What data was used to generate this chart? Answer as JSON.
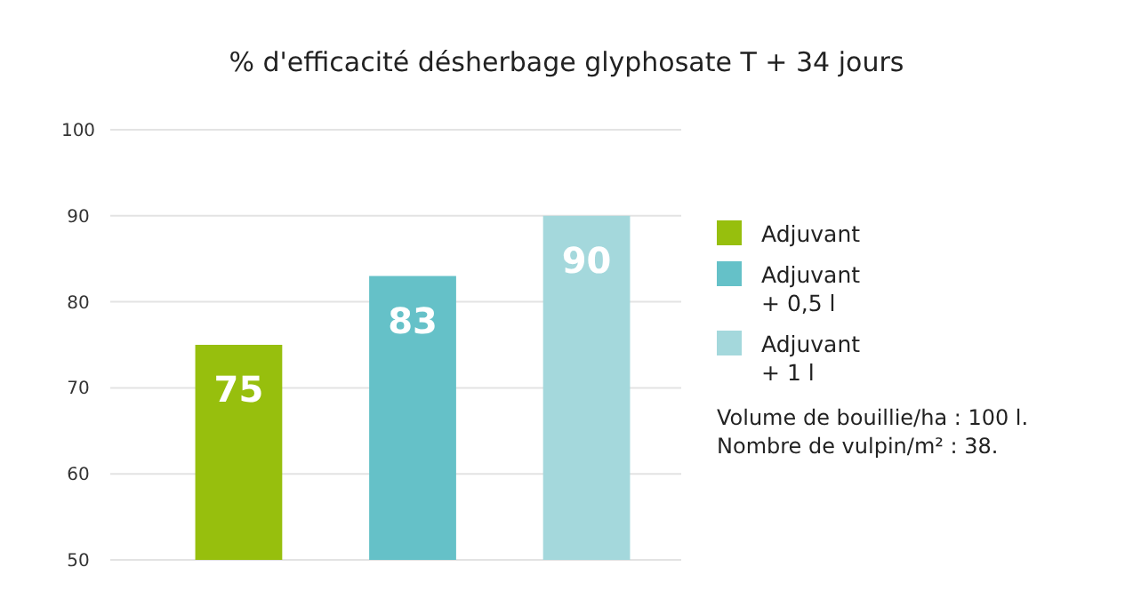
{
  "chart_data": {
    "type": "bar",
    "title": "% d'efficacité désherbage glyphosate T + 34 jours",
    "categories": [
      null,
      null,
      null
    ],
    "series": [
      {
        "name": "Adjuvant",
        "color": "#97bf0d",
        "values": [
          75,
          null,
          null
        ]
      },
      {
        "name": "Adjuvant + 0,5 l",
        "color": "#65c1c8",
        "values": [
          null,
          83,
          null
        ]
      },
      {
        "name": "Adjuvant + 1 l",
        "color": "#a4d8dc",
        "values": [
          null,
          null,
          90
        ]
      }
    ],
    "ylim": [
      50,
      100
    ],
    "yticks": [
      50,
      60,
      70,
      80,
      90,
      100
    ],
    "grid": "y",
    "legend": "right",
    "data_labels": true,
    "annotations": [
      "Volume de bouillie/ha : 100 l.",
      "Nombre de vulpin/m² : 38."
    ]
  }
}
